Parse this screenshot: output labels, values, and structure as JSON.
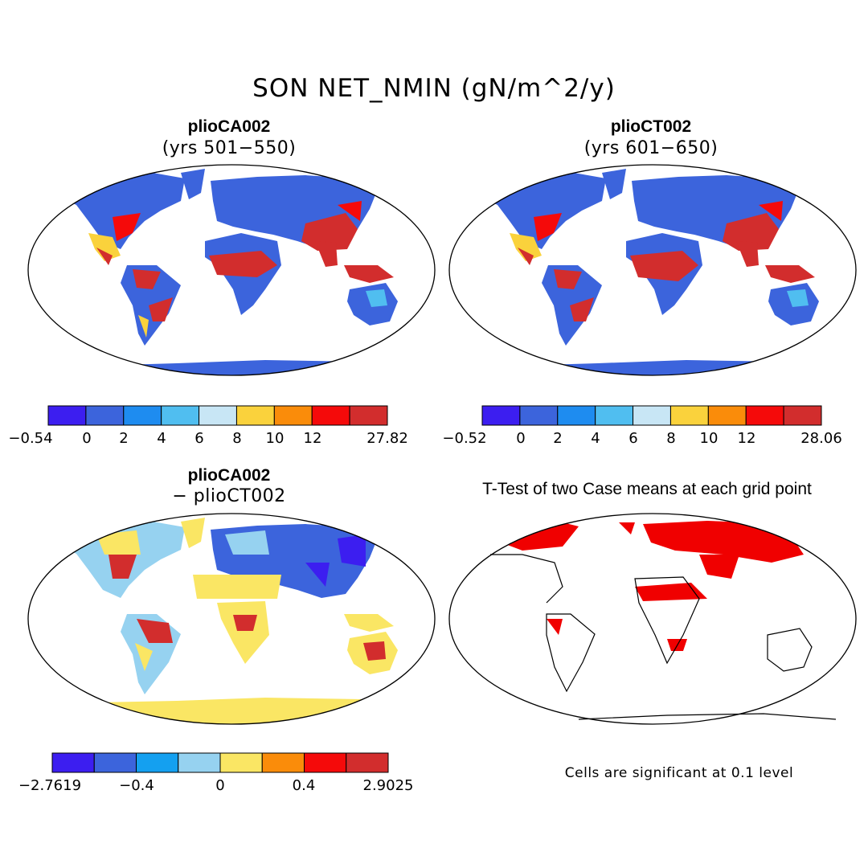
{
  "figure": {
    "title": "SON NET_NMIN (gN/m^2/y)"
  },
  "panels": {
    "top_left": {
      "case": "plioCA002",
      "years": "(yrs 501−550)"
    },
    "top_right": {
      "case": "plioCT002",
      "years": "(yrs 601−650)"
    },
    "bottom_left": {
      "case": "plioCA002",
      "minus_case": "− plioCT002"
    },
    "bottom_right": {
      "title": "T-Test of two Case means at each grid point",
      "footnote": "Cells are significant at 0.1 level"
    }
  },
  "colors": {
    "abs": [
      "#3c1ef0",
      "#3c64dc",
      "#1e8cf0",
      "#50bef0",
      "#c8e6f5",
      "#fad23c",
      "#fa8c0a",
      "#f50a0a",
      "#d22d2d"
    ],
    "diff": [
      "#3c1ef0",
      "#3c64dc",
      "#14a0f0",
      "#96d2f0",
      "#fae664",
      "#fa8c0a",
      "#f50a0a",
      "#d22d2d"
    ],
    "signif": "#f00000",
    "background_land_blue": "#3c64dc"
  },
  "chart_data": [
    {
      "type": "colorbar",
      "panel": "top_left",
      "tick_labels": [
        "−0.54",
        "0",
        "2",
        "4",
        "6",
        "8",
        "10",
        "12",
        "27.82"
      ],
      "range": [
        -0.54,
        27.82
      ]
    },
    {
      "type": "colorbar",
      "panel": "top_right",
      "tick_labels": [
        "−0.52",
        "0",
        "2",
        "4",
        "6",
        "8",
        "10",
        "12",
        "28.06"
      ],
      "range": [
        -0.52,
        28.06
      ]
    },
    {
      "type": "colorbar",
      "panel": "bottom_left",
      "tick_labels": [
        "−2.7619",
        "−0.4",
        "0",
        "0.4",
        "2.9025"
      ],
      "range": [
        -2.7619,
        2.9025
      ]
    }
  ]
}
